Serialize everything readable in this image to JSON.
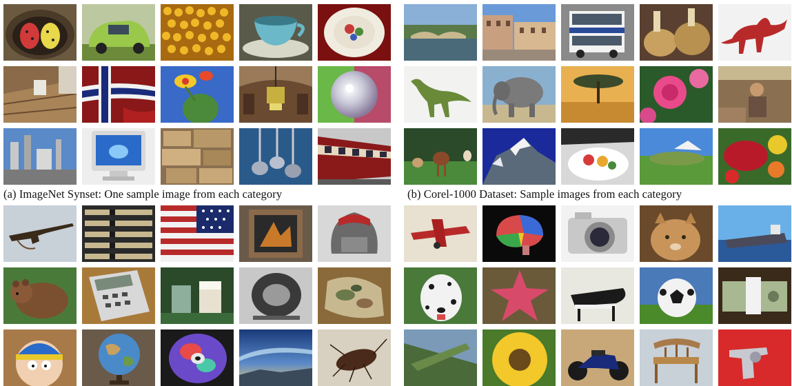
{
  "captions": {
    "a": "(a) ImageNet Synset: One sample image from each category",
    "b": "(b) Corel-1000 Dataset: Sample images from each category"
  },
  "panels": {
    "imagenet_top": [
      "eggs-in-nest",
      "green-car",
      "corn-kernels",
      "teacup",
      "decorated-plate",
      "wooden-porch",
      "norway-flag",
      "cactus-flower",
      "chandelier",
      "crystal-ball",
      "industrial-plant",
      "crt-monitor",
      "stone-wall",
      "ladles",
      "red-train"
    ],
    "corel1000": [
      "river-bridge",
      "old-buildings",
      "double-decker-bus",
      "baskets",
      "red-dinosaur",
      "green-dinosaur",
      "elephant",
      "savanna-tree",
      "pink-roses",
      "market-vendor",
      "horses",
      "snowy-mountain",
      "food-plate",
      "landscape-hills",
      "vegetables"
    ],
    "imagenet_bottom": [
      "rifle",
      "baseball-bats",
      "us-flag",
      "framed-art",
      "backpack",
      "brown-bear",
      "calculator",
      "glass-mugs",
      "tire",
      "camouflage-cloth",
      "cartoon-character",
      "globe",
      "cd-disc",
      "aurora-sky",
      "cockroach"
    ],
    "caltech_like": [
      "red-airplane",
      "brain-diagram",
      "digital-camera",
      "cougar",
      "ship",
      "dalmatian",
      "starfish",
      "grand-piano",
      "soccer-ball",
      "dollar-bill",
      "crocodile",
      "sunflower",
      "motorcycle",
      "wooden-chair",
      "revolver"
    ]
  }
}
